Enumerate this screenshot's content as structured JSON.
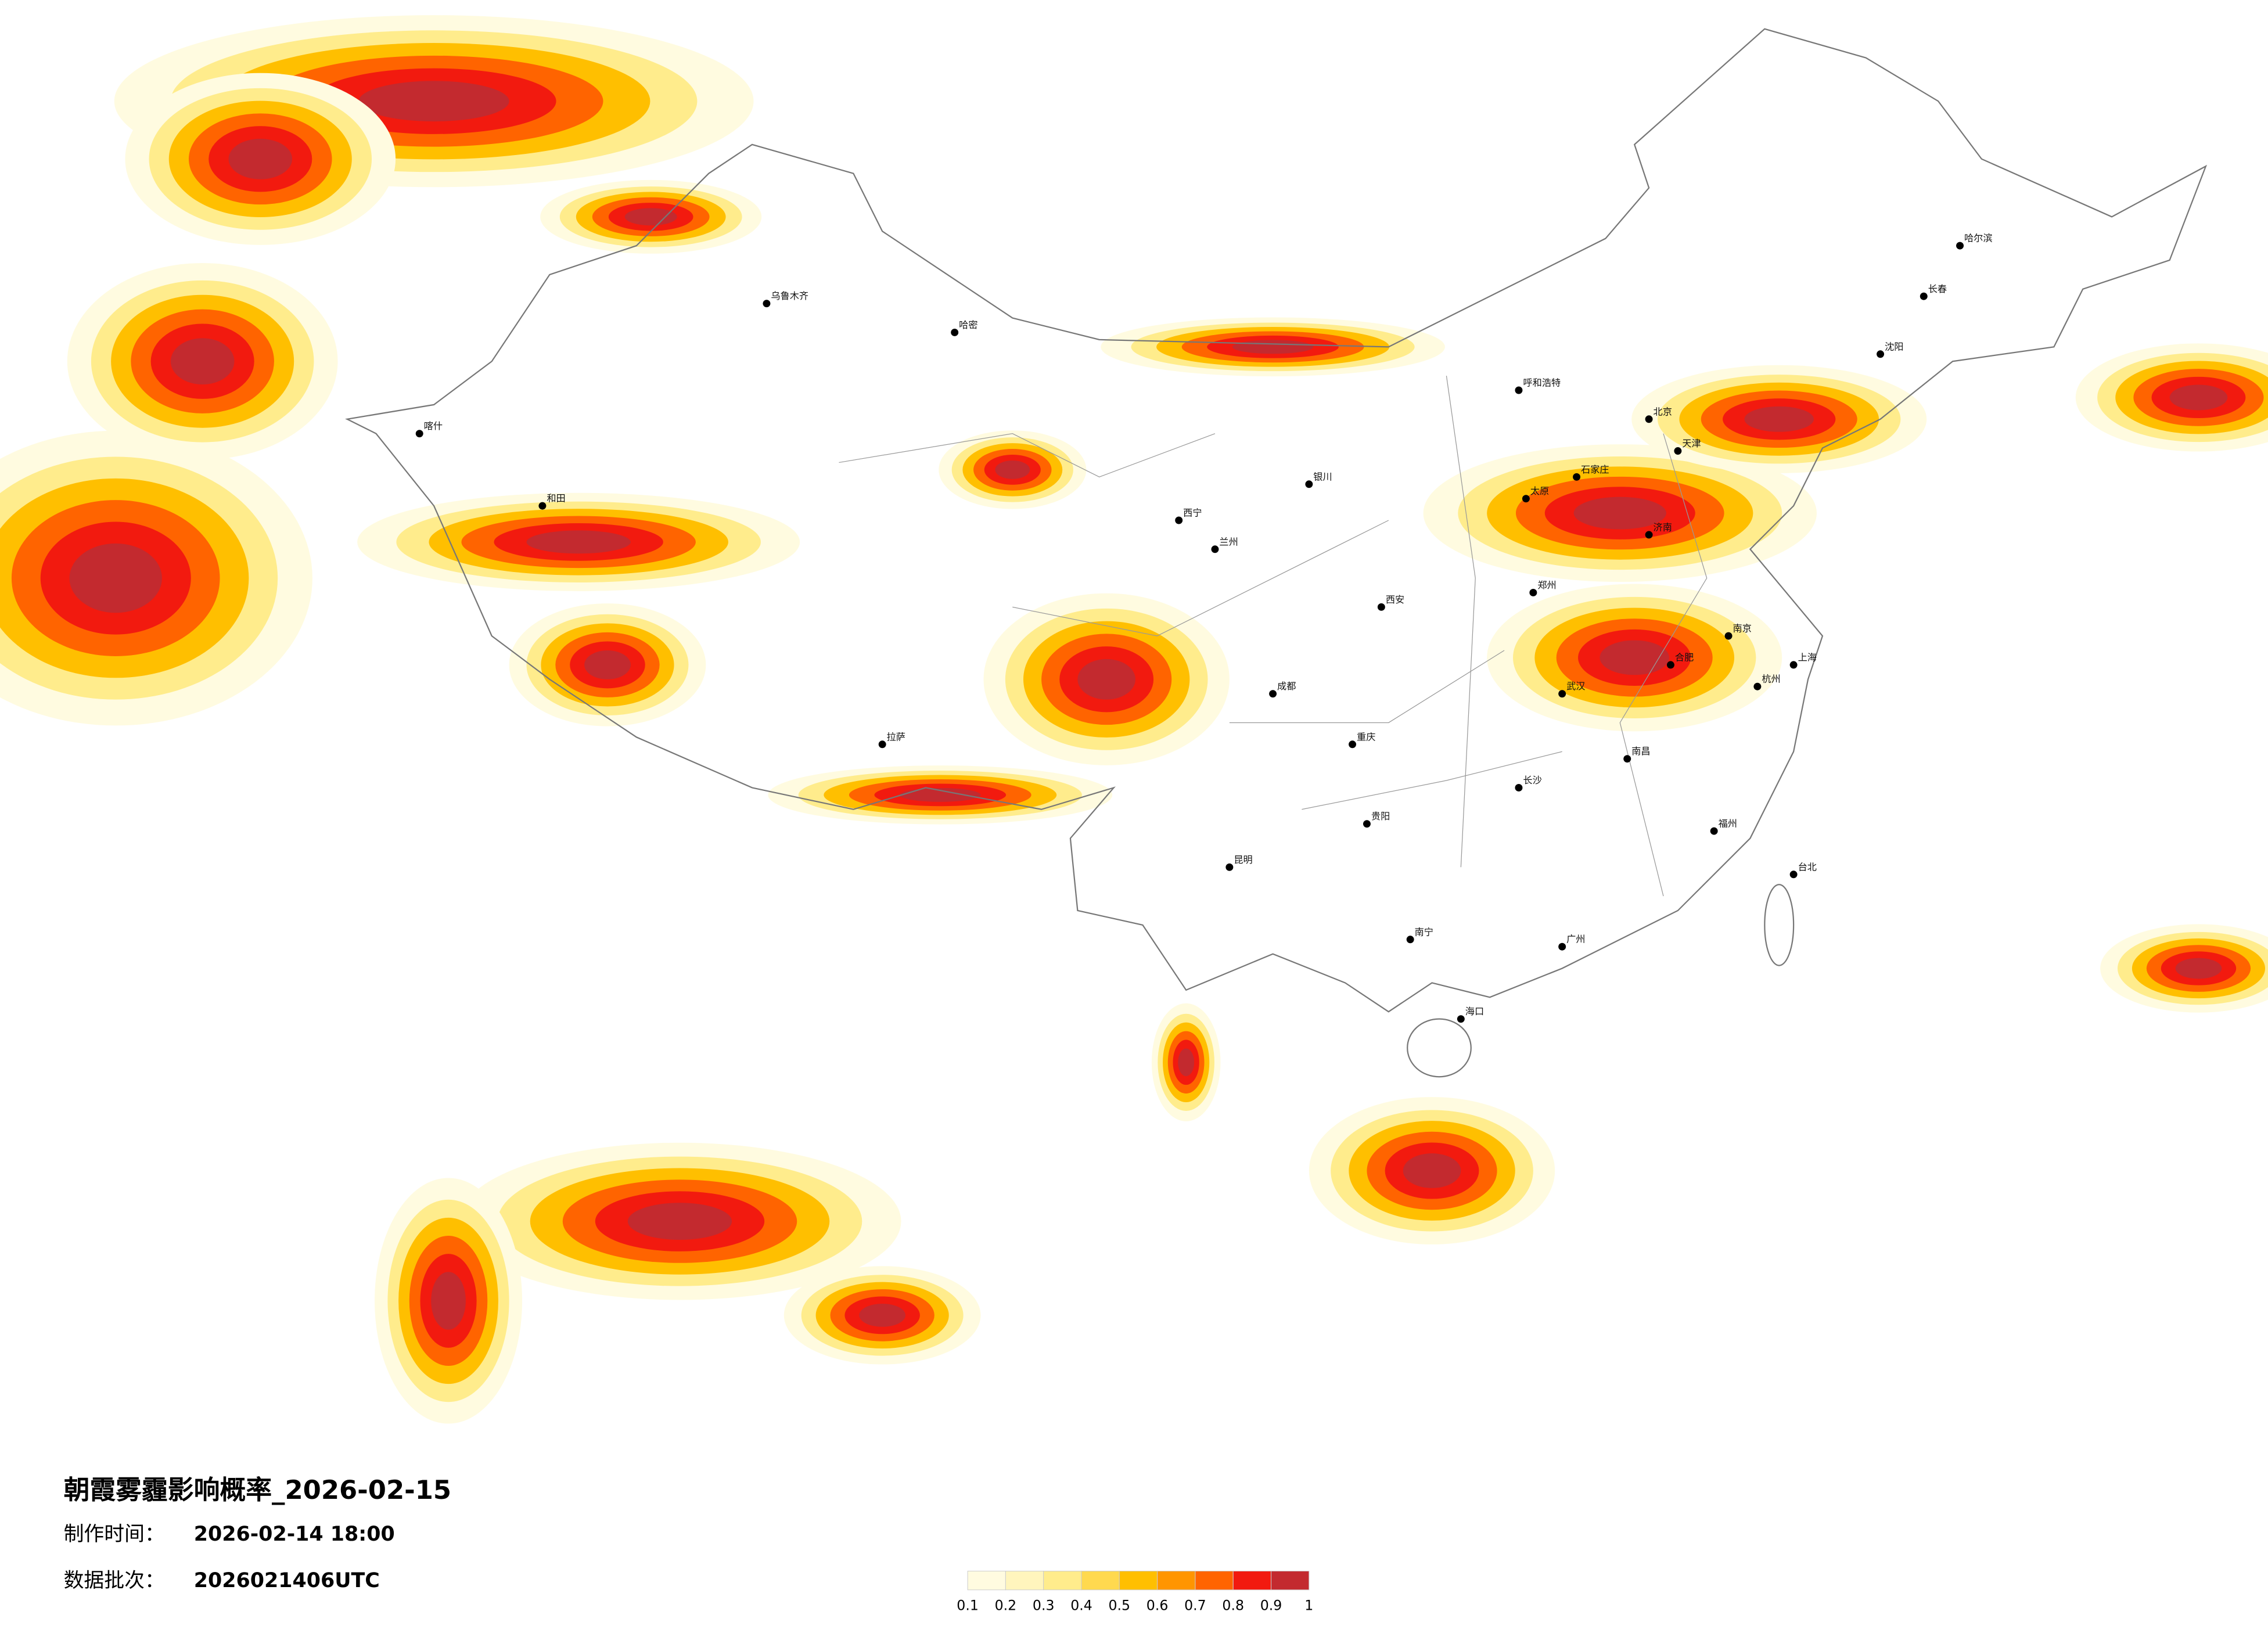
{
  "header": {
    "title": "朝霞雾霾影响概率_2026-02-15",
    "made_label": "制作时间：",
    "made_value": "2026-02-14 18:00",
    "batch_label": "数据批次：",
    "batch_value": "2026021406UTC"
  },
  "legend": {
    "colors": [
      "#fffbe0",
      "#fff5bd",
      "#ffec8c",
      "#ffd94f",
      "#ffbf00",
      "#ff9500",
      "#ff6400",
      "#f21a0f",
      "#c32a2f"
    ],
    "ticks": [
      0.1,
      0.2,
      0.3,
      0.4,
      0.5,
      0.6,
      0.7,
      0.8,
      0.9,
      1
    ]
  },
  "cities": [
    "北京",
    "天津",
    "上海",
    "广州",
    "重庆",
    "成都",
    "武汉",
    "西安",
    "兰州",
    "乌鲁木齐",
    "拉萨",
    "哈尔滨",
    "长春",
    "沈阳",
    "呼和浩特",
    "银川",
    "西宁",
    "昆明",
    "贵阳",
    "南宁",
    "海口",
    "福州",
    "杭州",
    "南京",
    "合肥",
    "济南",
    "石家庄",
    "太原",
    "郑州",
    "长沙",
    "南昌",
    "台北",
    "喀什",
    "和田",
    "哈密"
  ]
}
